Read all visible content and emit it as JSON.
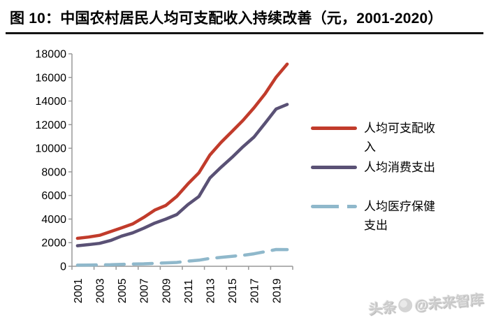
{
  "header": {
    "title": "图 10：中国农村居民人均可支配收入持续改善（元，2001-2020）"
  },
  "watermark": {
    "source": "头条",
    "handle": "@未来智库",
    "logo": "toutiao-logo"
  },
  "colors": {
    "title_text": "#000000",
    "title_rule": "#141414",
    "axis": "#999999",
    "axis_text": "#000000",
    "watermark_text": "#cdcdcd",
    "series_income": "#c13b2b",
    "series_consumption": "#5a5175",
    "series_medical": "#8fb8cb"
  },
  "chart_data": {
    "type": "line",
    "title": "图 10：中国农村居民人均可支配收入持续改善（元，2001-2020）",
    "unit": "元",
    "xlabel": "",
    "ylabel": "",
    "grid": false,
    "legend_position": "right",
    "ylim": [
      0,
      18000
    ],
    "y_ticks": [
      0,
      2000,
      4000,
      6000,
      8000,
      10000,
      12000,
      14000,
      16000,
      18000
    ],
    "x": [
      2001,
      2002,
      2003,
      2004,
      2005,
      2006,
      2007,
      2008,
      2009,
      2010,
      2011,
      2012,
      2013,
      2014,
      2015,
      2016,
      2017,
      2018,
      2019,
      2020
    ],
    "x_tick_labels": [
      "2001",
      "2003",
      "2005",
      "2007",
      "2009",
      "2011",
      "2013",
      "2015",
      "2017",
      "2019"
    ],
    "series": [
      {
        "name": "人均可支配收入",
        "color": "#c13b2b",
        "style": "solid",
        "values": [
          2366,
          2476,
          2622,
          2936,
          3255,
          3587,
          4140,
          4761,
          5153,
          5919,
          6977,
          7917,
          9430,
          10489,
          11422,
          12363,
          13432,
          14617,
          16021,
          17131
        ]
      },
      {
        "name": "人均消费支出",
        "color": "#5a5175",
        "style": "solid",
        "values": [
          1741,
          1834,
          1943,
          2185,
          2555,
          2829,
          3224,
          3661,
          3994,
          4382,
          5221,
          5908,
          7485,
          8383,
          9223,
          10130,
          10955,
          12124,
          13328,
          13713
        ]
      },
      {
        "name": "人均医疗保健支出",
        "color": "#8fb8cb",
        "style": "dashed",
        "values": [
          97,
          104,
          116,
          131,
          168,
          192,
          210,
          246,
          288,
          326,
          437,
          514,
          668,
          754,
          846,
          929,
          1059,
          1240,
          1421,
          1418
        ]
      }
    ]
  }
}
